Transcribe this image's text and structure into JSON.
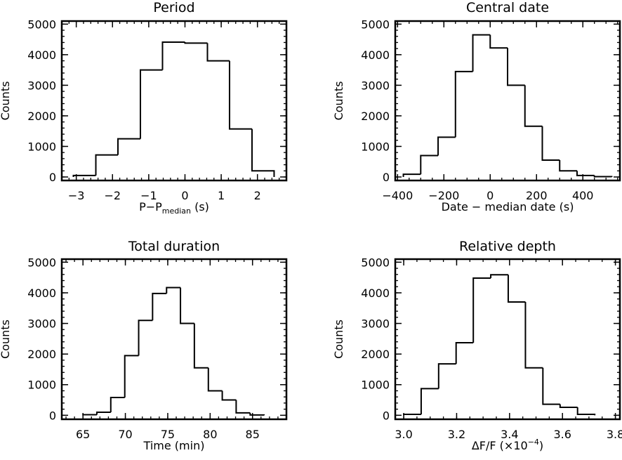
{
  "chart_data": [
    {
      "type": "bar",
      "title": "Period",
      "xlabel": "P−P",
      "xlabel_sub": "median",
      "xlabel_sup": "",
      "xlabel_suffix": " (s)",
      "ylabel": "Counts",
      "xlim": [
        -3.4,
        2.8
      ],
      "ylim": [
        -115,
        5100
      ],
      "xticks": [
        -3,
        -2,
        -1,
        0,
        1,
        2
      ],
      "xtick_labels": [
        "−3",
        "−2",
        "−1",
        "0",
        "1",
        "2"
      ],
      "xminor": 0.2,
      "yticks": [
        0,
        1000,
        2000,
        3000,
        4000,
        5000
      ],
      "ytick_labels": [
        "0",
        "1000",
        "2000",
        "3000",
        "4000",
        "5000"
      ],
      "yminor": 200,
      "bin_edges": [
        -3.08,
        -2.46,
        -1.85,
        -1.23,
        -0.62,
        0,
        0.62,
        1.23,
        1.85,
        2.46
      ],
      "values": [
        50,
        720,
        1250,
        3500,
        4410,
        4380,
        3800,
        1570,
        200
      ]
    },
    {
      "type": "bar",
      "title": "Central date",
      "xlabel": "Date − median date (s)",
      "xlabel_sub": "",
      "xlabel_sup": "",
      "xlabel_suffix": "",
      "ylabel": "Counts",
      "xlim": [
        -410,
        560
      ],
      "ylim": [
        -115,
        5100
      ],
      "xticks": [
        -400,
        -200,
        0,
        200,
        400
      ],
      "xtick_labels": [
        "−400",
        "−200",
        "0",
        "200",
        "400"
      ],
      "xminor": 50,
      "yticks": [
        0,
        1000,
        2000,
        3000,
        4000,
        5000
      ],
      "ytick_labels": [
        "0",
        "1000",
        "2000",
        "3000",
        "4000",
        "5000"
      ],
      "yminor": 200,
      "bin_edges": [
        -375,
        -300,
        -225,
        -150,
        -75,
        0,
        75,
        150,
        225,
        300,
        375,
        450,
        525
      ],
      "values": [
        90,
        700,
        1300,
        3450,
        4650,
        4220,
        3000,
        1660,
        550,
        200,
        50,
        10
      ]
    },
    {
      "type": "bar",
      "title": "Total duration",
      "xlabel": "Time (min)",
      "xlabel_sub": "",
      "xlabel_sup": "",
      "xlabel_suffix": "",
      "ylabel": "Counts",
      "xlim": [
        62.5,
        89
      ],
      "ylim": [
        -130,
        5100
      ],
      "xticks": [
        65,
        70,
        75,
        80,
        85
      ],
      "xtick_labels": [
        "65",
        "70",
        "75",
        "80",
        "85"
      ],
      "xminor": 1,
      "yticks": [
        0,
        1000,
        2000,
        3000,
        4000,
        5000
      ],
      "ytick_labels": [
        "0",
        "1000",
        "2000",
        "3000",
        "4000",
        "5000"
      ],
      "yminor": 200,
      "bin_edges": [
        65.0,
        66.64,
        68.28,
        69.93,
        71.57,
        73.21,
        74.86,
        76.5,
        78.14,
        79.79,
        81.43,
        83.07,
        84.72,
        86.36
      ],
      "values": [
        20,
        100,
        580,
        1950,
        3100,
        3980,
        4170,
        3000,
        1550,
        800,
        500,
        80,
        10
      ]
    },
    {
      "type": "bar",
      "title": "Relative depth",
      "xlabel": "ΔF/F (×10",
      "xlabel_sub": "",
      "xlabel_sup": "−4",
      "xlabel_suffix": ")",
      "ylabel": "Counts",
      "xlim": [
        2.968,
        3.817
      ],
      "ylim": [
        -130,
        5100
      ],
      "xticks": [
        3.0,
        3.2,
        3.4,
        3.6,
        3.8
      ],
      "xtick_labels": [
        "3.0",
        "3.2",
        "3.4",
        "3.6",
        "3.8"
      ],
      "xminor": 0.05,
      "yticks": [
        0,
        1000,
        2000,
        3000,
        4000,
        5000
      ],
      "ytick_labels": [
        "0",
        "1000",
        "2000",
        "3000",
        "4000",
        "5000"
      ],
      "yminor": 200,
      "bin_edges": [
        3.0,
        3.066,
        3.132,
        3.198,
        3.263,
        3.329,
        3.395,
        3.46,
        3.526,
        3.591,
        3.657,
        3.722
      ],
      "values": [
        30,
        870,
        1680,
        2370,
        4480,
        4590,
        3700,
        1550,
        360,
        260,
        30
      ]
    }
  ]
}
